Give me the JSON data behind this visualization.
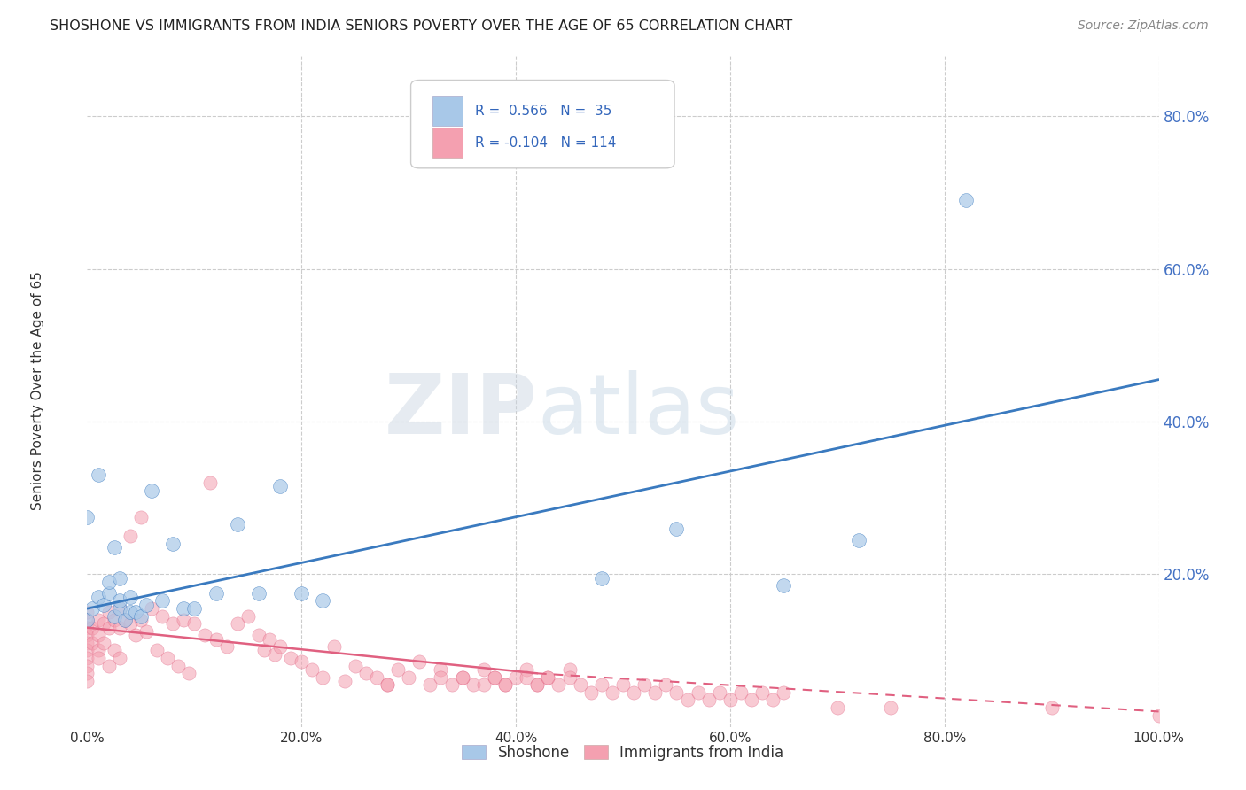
{
  "title": "SHOSHONE VS IMMIGRANTS FROM INDIA SENIORS POVERTY OVER THE AGE OF 65 CORRELATION CHART",
  "source": "Source: ZipAtlas.com",
  "ylabel": "Seniors Poverty Over the Age of 65",
  "r_shoshone": 0.566,
  "n_shoshone": 35,
  "r_india": -0.104,
  "n_india": 114,
  "shoshone_color": "#a8c8e8",
  "india_color": "#f4a0b0",
  "shoshone_line_color": "#3a7abf",
  "india_line_color": "#e06080",
  "background_color": "#ffffff",
  "grid_color": "#cccccc",
  "watermark_zip": "ZIP",
  "watermark_atlas": "atlas",
  "legend_labels": [
    "Shoshone",
    "Immigrants from India"
  ],
  "xlim": [
    0,
    1.0
  ],
  "ylim": [
    0,
    0.88
  ],
  "x_ticks": [
    0.0,
    0.2,
    0.4,
    0.6,
    0.8,
    1.0
  ],
  "y_ticks_right": [
    0.2,
    0.4,
    0.6,
    0.8
  ],
  "shoshone_x": [
    0.0,
    0.005,
    0.01,
    0.015,
    0.02,
    0.02,
    0.025,
    0.03,
    0.03,
    0.035,
    0.04,
    0.04,
    0.045,
    0.05,
    0.055,
    0.06,
    0.07,
    0.08,
    0.09,
    0.1,
    0.12,
    0.14,
    0.16,
    0.18,
    0.2,
    0.22,
    0.48,
    0.55,
    0.65,
    0.72,
    0.82,
    0.0,
    0.01,
    0.025,
    0.03
  ],
  "shoshone_y": [
    0.14,
    0.155,
    0.17,
    0.16,
    0.175,
    0.19,
    0.145,
    0.155,
    0.165,
    0.14,
    0.15,
    0.17,
    0.15,
    0.145,
    0.16,
    0.31,
    0.165,
    0.24,
    0.155,
    0.155,
    0.175,
    0.265,
    0.175,
    0.315,
    0.175,
    0.165,
    0.195,
    0.26,
    0.185,
    0.245,
    0.69,
    0.275,
    0.33,
    0.235,
    0.195
  ],
  "india_x": [
    0.0,
    0.0,
    0.0,
    0.0,
    0.0,
    0.0,
    0.0,
    0.0,
    0.0,
    0.0,
    0.005,
    0.005,
    0.01,
    0.01,
    0.01,
    0.01,
    0.015,
    0.015,
    0.02,
    0.02,
    0.02,
    0.025,
    0.025,
    0.03,
    0.03,
    0.03,
    0.035,
    0.04,
    0.04,
    0.045,
    0.05,
    0.05,
    0.055,
    0.06,
    0.065,
    0.07,
    0.075,
    0.08,
    0.085,
    0.09,
    0.095,
    0.1,
    0.11,
    0.115,
    0.12,
    0.13,
    0.14,
    0.15,
    0.16,
    0.165,
    0.17,
    0.175,
    0.18,
    0.19,
    0.2,
    0.21,
    0.22,
    0.23,
    0.24,
    0.25,
    0.26,
    0.27,
    0.28,
    0.29,
    0.3,
    0.31,
    0.32,
    0.33,
    0.35,
    0.36,
    0.37,
    0.38,
    0.39,
    0.4,
    0.41,
    0.42,
    0.43,
    0.45,
    0.28,
    0.33,
    0.34,
    0.35,
    0.37,
    0.38,
    0.39,
    0.41,
    0.42,
    0.43,
    0.44,
    0.45,
    0.46,
    0.47,
    0.48,
    0.49,
    0.5,
    0.51,
    0.52,
    0.53,
    0.54,
    0.55,
    0.56,
    0.57,
    0.58,
    0.59,
    0.6,
    0.61,
    0.62,
    0.63,
    0.64,
    0.65,
    0.7,
    0.75,
    0.9,
    1.0
  ],
  "india_y": [
    0.14,
    0.13,
    0.12,
    0.11,
    0.1,
    0.09,
    0.08,
    0.07,
    0.06,
    0.15,
    0.13,
    0.11,
    0.14,
    0.12,
    0.1,
    0.09,
    0.135,
    0.11,
    0.15,
    0.13,
    0.08,
    0.14,
    0.1,
    0.155,
    0.13,
    0.09,
    0.14,
    0.25,
    0.135,
    0.12,
    0.275,
    0.14,
    0.125,
    0.155,
    0.1,
    0.145,
    0.09,
    0.135,
    0.08,
    0.14,
    0.07,
    0.135,
    0.12,
    0.32,
    0.115,
    0.105,
    0.135,
    0.145,
    0.12,
    0.1,
    0.115,
    0.095,
    0.105,
    0.09,
    0.085,
    0.075,
    0.065,
    0.105,
    0.06,
    0.08,
    0.07,
    0.065,
    0.055,
    0.075,
    0.065,
    0.085,
    0.055,
    0.075,
    0.065,
    0.055,
    0.075,
    0.065,
    0.055,
    0.065,
    0.075,
    0.055,
    0.065,
    0.075,
    0.055,
    0.065,
    0.055,
    0.065,
    0.055,
    0.065,
    0.055,
    0.065,
    0.055,
    0.065,
    0.055,
    0.065,
    0.055,
    0.045,
    0.055,
    0.045,
    0.055,
    0.045,
    0.055,
    0.045,
    0.055,
    0.045,
    0.035,
    0.045,
    0.035,
    0.045,
    0.035,
    0.045,
    0.035,
    0.045,
    0.035,
    0.045,
    0.025,
    0.025,
    0.025,
    0.015
  ]
}
